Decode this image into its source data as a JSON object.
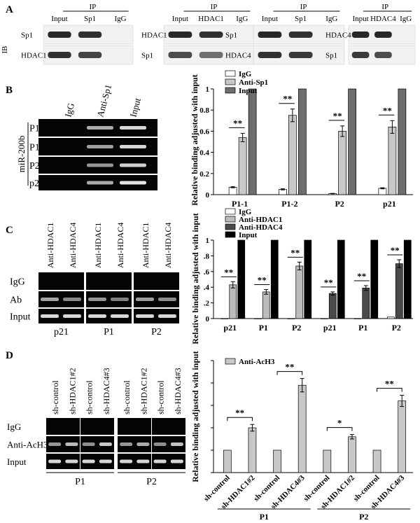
{
  "panels": {
    "A": {
      "letter": "A",
      "ib_label": "IB",
      "blots": [
        {
          "ip": "IP",
          "lanes": [
            "Input",
            "Sp1",
            "IgG"
          ],
          "rows": [
            "Sp1",
            "HDAC1"
          ],
          "bands": [
            [
              1,
              0.95,
              0
            ],
            [
              0.95,
              0.85,
              0
            ]
          ]
        },
        {
          "ip": "IP",
          "lanes": [
            "Input",
            "HDAC1",
            "IgG"
          ],
          "rows": [
            "HDAC1",
            "Sp1"
          ],
          "bands": [
            [
              1,
              0.95,
              0
            ],
            [
              0.8,
              0.6,
              0
            ]
          ]
        },
        {
          "ip": "IP",
          "lanes": [
            "Input",
            "Sp1",
            "IgG"
          ],
          "rows": [
            "Sp1",
            "HDAC4"
          ],
          "bands": [
            [
              1,
              0.95,
              0
            ],
            [
              0.95,
              0.9,
              0
            ]
          ]
        },
        {
          "ip": "IP",
          "lanes": [
            "Input",
            "HDAC4",
            "IgG"
          ],
          "rows": [
            "HDAC4",
            "Sp1"
          ],
          "bands": [
            [
              1,
              1,
              0
            ],
            [
              0.9,
              0.8,
              0
            ]
          ]
        }
      ]
    },
    "B": {
      "letter": "B",
      "gel": {
        "lanes": [
          "IgG",
          "Anti-Sp1",
          "Input"
        ],
        "side_label": "miR-200b",
        "rows": [
          "P1-1",
          "P1-2",
          "P2",
          "p21"
        ],
        "bands": [
          [
            0,
            0.6,
            0.9
          ],
          [
            0,
            0.5,
            0.9
          ],
          [
            0,
            0.45,
            0.85
          ],
          [
            0,
            0.6,
            1
          ]
        ]
      }
    },
    "C": {
      "letter": "C",
      "gel": {
        "groups": [
          "p21",
          "P1",
          "P2"
        ],
        "lanes": [
          "Anti-HDAC1",
          "Anti-HDAC4"
        ],
        "rows": [
          "IgG",
          "Ab",
          "Input"
        ],
        "bands": [
          [
            0,
            0.55,
            0.9
          ],
          [
            0,
            0.35,
            0.9
          ],
          [
            0,
            0.45,
            0.9
          ],
          [
            0,
            0.3,
            0.9
          ],
          [
            0,
            0.5,
            0.9
          ],
          [
            0,
            0.4,
            0.9
          ]
        ]
      }
    },
    "D": {
      "letter": "D",
      "gel": {
        "groups": [
          "P1",
          "P2"
        ],
        "lanes": [
          "sh-control",
          "sh-HDAC1#2",
          "sh-control",
          "sh-HDAC4#3"
        ],
        "rows": [
          "IgG",
          "Anti-AcH3",
          "Input"
        ],
        "bands": [
          [
            0,
            0.45,
            0.9
          ],
          [
            0,
            0.7,
            0.9
          ],
          [
            0,
            0.4,
            0.9
          ],
          [
            0,
            0.8,
            0.9
          ],
          [
            0,
            0.45,
            0.9
          ],
          [
            0,
            0.6,
            0.9
          ],
          [
            0,
            0.4,
            0.9
          ],
          [
            0,
            0.75,
            0.9
          ]
        ]
      }
    }
  },
  "chart_data": [
    {
      "type": "bar",
      "panel": "B",
      "ylabel": "Relative binding adjusted with input",
      "ylim": [
        0,
        1.0
      ],
      "yticks": [
        "0",
        "0.2",
        "0.4",
        "0.6",
        "0.8",
        "1"
      ],
      "categories": [
        "P1-1",
        "P1-2",
        "P2",
        "p21"
      ],
      "legend": "top-left",
      "series": [
        {
          "name": "IgG",
          "color": "#ffffff",
          "values": [
            0.07,
            0.05,
            0.01,
            0.06
          ],
          "errors": [
            0.005,
            0.005,
            0.002,
            0.005
          ]
        },
        {
          "name": "Anti-Sp1",
          "color": "#c8c8c8",
          "values": [
            0.54,
            0.75,
            0.6,
            0.64
          ],
          "errors": [
            0.04,
            0.06,
            0.05,
            0.06
          ]
        },
        {
          "name": "Input",
          "color": "#6e6e6e",
          "values": [
            1.0,
            1.0,
            1.0,
            1.0
          ],
          "errors": [
            0,
            0,
            0,
            0
          ]
        }
      ],
      "annotations": [
        "**",
        "**",
        "**",
        "**"
      ]
    },
    {
      "type": "bar",
      "panel": "C",
      "ylabel": "Relative binding adjusted with input",
      "ylim": [
        0,
        1.0
      ],
      "yticks": [
        "0",
        ".2",
        ".4",
        ".6",
        ".8",
        "1"
      ],
      "categories": [
        "p21",
        "P1",
        "P2",
        "p21",
        "P1",
        "P2"
      ],
      "legend": "top-left",
      "series": [
        {
          "name": "IgG",
          "color": "#ffffff"
        },
        {
          "name": "Anti-HDAC1",
          "color": "#bcbcbc"
        },
        {
          "name": "Anti-HDAC4",
          "color": "#4a4a4a"
        },
        {
          "name": "Input",
          "color": "#000000"
        }
      ],
      "groups": [
        {
          "category": "p21",
          "igg": 0.0,
          "ab": 0.43,
          "ab_err": 0.04,
          "ab_series": "Anti-HDAC1",
          "input": 1.0,
          "sig": "**"
        },
        {
          "category": "P1",
          "igg": 0.0,
          "ab": 0.34,
          "ab_err": 0.03,
          "ab_series": "Anti-HDAC1",
          "input": 1.0,
          "sig": "**"
        },
        {
          "category": "P2",
          "igg": 0.0,
          "ab": 0.67,
          "ab_err": 0.05,
          "ab_series": "Anti-HDAC1",
          "input": 1.0,
          "sig": "**"
        },
        {
          "category": "p21",
          "igg": 0.0,
          "ab": 0.32,
          "ab_err": 0.02,
          "ab_series": "Anti-HDAC4",
          "input": 1.0,
          "sig": "**"
        },
        {
          "category": "P1",
          "igg": 0.0,
          "ab": 0.39,
          "ab_err": 0.03,
          "ab_series": "Anti-HDAC4",
          "input": 1.0,
          "sig": "**"
        },
        {
          "category": "P2",
          "igg": 0.02,
          "ab": 0.7,
          "ab_err": 0.05,
          "ab_series": "Anti-HDAC4",
          "input": 1.0,
          "sig": "**"
        }
      ]
    },
    {
      "type": "bar",
      "panel": "D",
      "ylabel": "Relative binding adjusted with input",
      "ylim": [
        0,
        5
      ],
      "categories": [
        "sh-control",
        "sh-HDAC1#2",
        "sh-control",
        "sh-HDAC4#3",
        "sh-control",
        "sh-HDAC1#2",
        "sh-control",
        "sh-HDAC4#3"
      ],
      "groups": [
        "P1",
        "P2"
      ],
      "legend": "top-left",
      "series": [
        {
          "name": "Anti-AcH3",
          "color": "#c8c8c8",
          "values": [
            1.0,
            2.0,
            1.0,
            3.9,
            1.0,
            1.6,
            1.0,
            3.2
          ],
          "errors": [
            0,
            0.15,
            0,
            0.3,
            0,
            0.1,
            0,
            0.25
          ]
        }
      ],
      "comparisons": [
        {
          "from": 0,
          "to": 1,
          "label": "**"
        },
        {
          "from": 2,
          "to": 3,
          "label": "**"
        },
        {
          "from": 4,
          "to": 5,
          "label": "*"
        },
        {
          "from": 6,
          "to": 7,
          "label": "**"
        }
      ]
    }
  ]
}
